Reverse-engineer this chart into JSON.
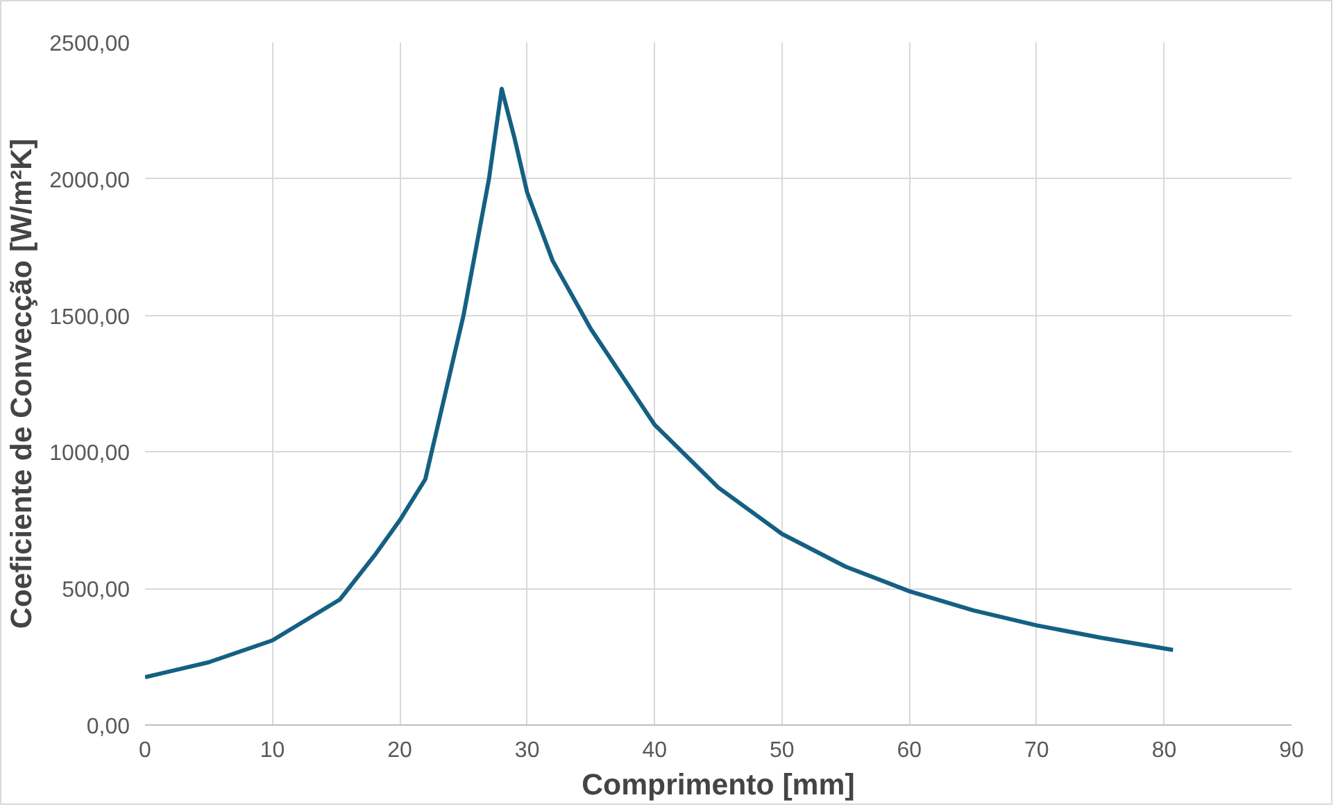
{
  "chart_data": {
    "type": "line",
    "xlabel": "Comprimento [mm]",
    "ylabel": "Coeficiente de Convecção [W/m²K]",
    "xlim": [
      0,
      90
    ],
    "xticks": [
      0,
      10,
      20,
      30,
      40,
      50,
      60,
      70,
      80,
      90
    ],
    "ylim": [
      0,
      2500
    ],
    "yticks": [
      {
        "value": 0,
        "label": "0,00"
      },
      {
        "value": 500,
        "label": "500,00"
      },
      {
        "value": 1000,
        "label": "1000,00"
      },
      {
        "value": 1500,
        "label": "1500,00"
      },
      {
        "value": 2000,
        "label": "2000,00"
      },
      {
        "value": 2500,
        "label": "2500,00"
      }
    ],
    "grid": true,
    "marker": "none",
    "line_style": "solid",
    "series": [
      {
        "color": "#156082",
        "x": [
          0,
          5,
          10,
          15.3,
          18,
          20,
          22,
          22.5,
          24,
          25,
          26,
          27,
          28,
          29,
          30,
          32,
          35,
          40,
          45,
          50,
          55,
          60,
          65,
          70,
          75,
          80.7
        ],
        "values": [
          175,
          230,
          310,
          460,
          620,
          750,
          900,
          1000,
          1300,
          1500,
          1750,
          2000,
          2330,
          2150,
          1950,
          1700,
          1450,
          1100,
          870,
          700,
          580,
          490,
          420,
          365,
          320,
          275
        ]
      }
    ]
  }
}
